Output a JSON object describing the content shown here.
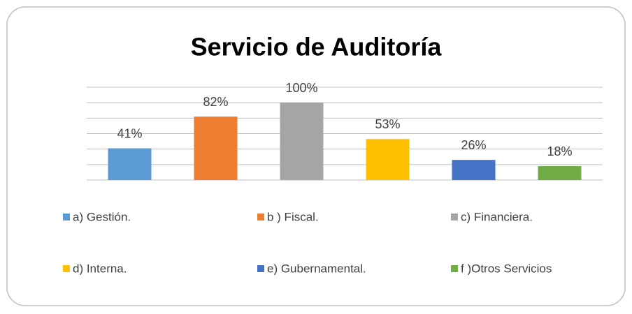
{
  "chart_data": {
    "type": "bar",
    "title": "Servicio de Auditoría",
    "categories": [
      "a) Gestión.",
      "b ) Fiscal.",
      "c) Financiera.",
      "d) Interna.",
      "e) Gubernamental.",
      "f )Otros Servicios"
    ],
    "values": [
      41,
      82,
      100,
      53,
      26,
      18
    ],
    "value_labels": [
      "41%",
      "82%",
      "100%",
      "53%",
      "26%",
      "18%"
    ],
    "colors": [
      "#5b9bd5",
      "#ed7d31",
      "#a5a5a5",
      "#ffc000",
      "#4472c4",
      "#70ad47"
    ],
    "ylim": [
      0,
      120
    ],
    "yticks": [
      0,
      20,
      40,
      60,
      80,
      100,
      120
    ],
    "grid": true
  }
}
